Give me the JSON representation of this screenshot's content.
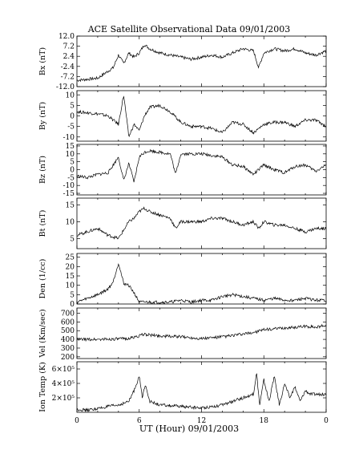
{
  "title": "ACE Satellite Observational Data  09/01/2003",
  "xlabel": "UT (Hour)  09/01/2003",
  "x_ticks": [
    "0",
    "6",
    "12",
    "18",
    "0"
  ],
  "chart_data": [
    {
      "type": "line",
      "ylabel": "Bx (nT)",
      "ylim": [
        -12,
        12
      ],
      "yticks": [
        "12.0",
        "7.2",
        "2.4",
        "-2.4",
        "-7.2",
        "-12.0"
      ],
      "x": [
        0,
        2,
        3.5,
        4,
        4.5,
        5,
        5.5,
        6,
        6.5,
        7,
        8,
        9,
        10,
        11,
        12,
        13,
        14,
        15,
        16,
        17,
        17.5,
        18,
        19,
        20,
        21,
        22,
        23,
        24
      ],
      "y": [
        -9,
        -8,
        -3,
        3,
        -1,
        4,
        2,
        4,
        8,
        6,
        4,
        3,
        2,
        1,
        2,
        3,
        2,
        4,
        6,
        5,
        -3,
        4,
        6,
        5,
        6,
        4,
        3,
        5
      ]
    },
    {
      "type": "line",
      "ylabel": "By (nT)",
      "ylim": [
        -12,
        12
      ],
      "yticks": [
        "10",
        "5",
        "0",
        "-5",
        "-10"
      ],
      "x": [
        0,
        2,
        3,
        4,
        4.5,
        5,
        5.5,
        6,
        6.5,
        7,
        8,
        9,
        10,
        11,
        12,
        13,
        14,
        15,
        16,
        17,
        18,
        19,
        20,
        21,
        22,
        23,
        24
      ],
      "y": [
        2,
        1,
        0,
        -4,
        10,
        -10,
        -4,
        -7,
        0,
        4,
        5,
        2,
        -3,
        -5,
        -5,
        -6,
        -8,
        -3,
        -4,
        -8,
        -4,
        -3,
        -3,
        -5,
        -2,
        -2,
        -5
      ]
    },
    {
      "type": "line",
      "ylabel": "Bz (nT)",
      "ylim": [
        -16,
        16
      ],
      "yticks": [
        "15",
        "10",
        "5",
        "0",
        "-5",
        "-10",
        "-15"
      ],
      "x": [
        0,
        1,
        2,
        3,
        4,
        4.5,
        5,
        5.5,
        6,
        6.5,
        7,
        8,
        9,
        9.5,
        10,
        11,
        12,
        13,
        14,
        15,
        16,
        17,
        18,
        19,
        20,
        21,
        22,
        23,
        24
      ],
      "y": [
        -4,
        -5,
        -3,
        -2,
        8,
        -7,
        4,
        -8,
        8,
        11,
        12,
        11,
        10,
        -3,
        10,
        10,
        10,
        9,
        8,
        3,
        2,
        -3,
        3,
        0,
        -2,
        2,
        3,
        -1,
        3
      ]
    },
    {
      "type": "line",
      "ylabel": "Bt (nT)",
      "ylim": [
        2,
        17
      ],
      "yticks": [
        "15",
        "10",
        "5"
      ],
      "x": [
        0,
        1,
        2,
        3,
        4,
        5,
        5.5,
        6,
        6.5,
        7,
        8,
        9,
        9.5,
        10,
        11,
        12,
        13,
        14,
        15,
        16,
        17,
        17.5,
        18,
        19,
        20,
        21,
        22,
        23,
        24
      ],
      "y": [
        6,
        7,
        8,
        6,
        5,
        10,
        11,
        13,
        14,
        13,
        12,
        11,
        8,
        10,
        10,
        10,
        11,
        11,
        10,
        9,
        10,
        8,
        10,
        9,
        9,
        8,
        7,
        8,
        8
      ]
    },
    {
      "type": "line",
      "ylabel": "Den (1/cc)",
      "ylim": [
        0,
        27
      ],
      "yticks": [
        "25",
        "20",
        "15",
        "10",
        "5",
        "0"
      ],
      "x": [
        0,
        1,
        2,
        3,
        3.5,
        4,
        4.5,
        5,
        5.5,
        6,
        7,
        8,
        9,
        10,
        11,
        12,
        13,
        14,
        15,
        16,
        17,
        18,
        19,
        20,
        21,
        22,
        23,
        24
      ],
      "y": [
        1,
        3,
        5,
        8,
        12,
        22,
        11,
        10,
        6,
        1,
        1,
        1,
        1,
        2,
        1,
        2,
        2,
        4,
        5,
        4,
        3,
        2,
        3,
        2,
        2,
        3,
        2,
        2
      ]
    },
    {
      "type": "line",
      "ylabel": "Vel (Km/sec)",
      "ylim": [
        180,
        760
      ],
      "yticks": [
        "700",
        "600",
        "500",
        "400",
        "300",
        "200"
      ],
      "x": [
        0,
        2,
        4,
        5,
        6,
        6.5,
        7,
        8,
        10,
        12,
        14,
        16,
        17,
        18,
        19,
        20,
        21,
        22,
        23,
        24
      ],
      "y": [
        400,
        400,
        405,
        410,
        440,
        460,
        450,
        440,
        430,
        410,
        430,
        460,
        480,
        510,
        520,
        530,
        540,
        550,
        540,
        560
      ]
    },
    {
      "type": "line",
      "ylabel": "Ion Temp (K)",
      "ylim": [
        0,
        700000
      ],
      "yticks": [
        "6×10⁵",
        "4×10⁵",
        "2×10⁵"
      ],
      "x": [
        0,
        1,
        2,
        3,
        4,
        5,
        5.5,
        6,
        6.3,
        6.6,
        7,
        8,
        9,
        10,
        11,
        12,
        13,
        14,
        15,
        16,
        17,
        17.3,
        17.6,
        18,
        18.5,
        19,
        19.5,
        20,
        20.5,
        21,
        21.5,
        22,
        22.5,
        23,
        24
      ],
      "y": [
        40000,
        30000,
        50000,
        80000,
        100000,
        150000,
        300000,
        500000,
        200000,
        400000,
        150000,
        100000,
        90000,
        80000,
        70000,
        60000,
        80000,
        100000,
        150000,
        200000,
        250000,
        550000,
        100000,
        450000,
        150000,
        500000,
        100000,
        400000,
        200000,
        350000,
        150000,
        300000,
        250000,
        250000,
        250000
      ]
    }
  ]
}
